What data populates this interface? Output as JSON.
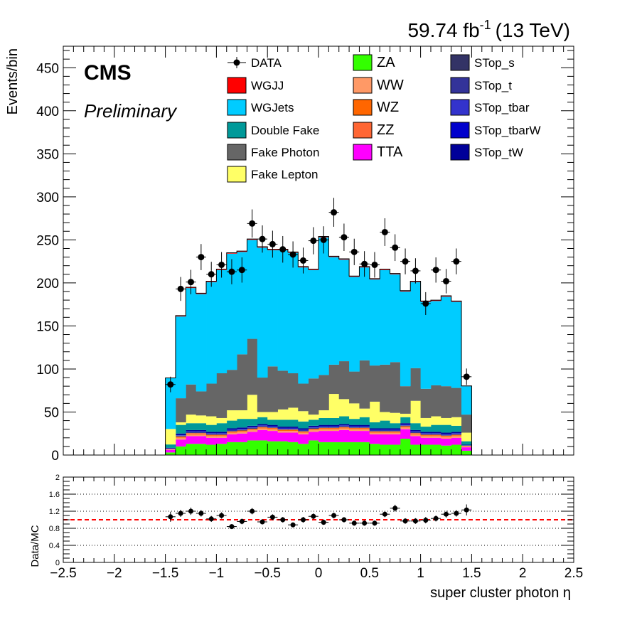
{
  "lumi_text": {
    "value": "59.74 fb",
    "exp": "-1",
    "energy": "(13 TeV)"
  },
  "cms_label": "CMS",
  "prelim_label": "Preliminary",
  "legend": [
    {
      "name": "DATA",
      "color": "#000000",
      "style": "marker"
    },
    {
      "name": "WGJJ",
      "color": "#ff0000"
    },
    {
      "name": "WGJets",
      "color": "#00ccff"
    },
    {
      "name": "Double Fake",
      "color": "#009999"
    },
    {
      "name": "Fake Photon",
      "color": "#666666"
    },
    {
      "name": "Fake Lepton",
      "color": "#ffff66"
    },
    {
      "name": "ZA",
      "color": "#33ff00"
    },
    {
      "name": "WW",
      "color": "#ff9966"
    },
    {
      "name": "WZ",
      "color": "#ff6600"
    },
    {
      "name": "ZZ",
      "color": "#ff6633"
    },
    {
      "name": "TTA",
      "color": "#ff00ff"
    },
    {
      "name": "STop_s",
      "color": "#333366"
    },
    {
      "name": "STop_t",
      "color": "#333399"
    },
    {
      "name": "STop_tbar",
      "color": "#3333cc"
    },
    {
      "name": "STop_tbarW",
      "color": "#0000cc"
    },
    {
      "name": "STop_tW",
      "color": "#000099"
    }
  ],
  "chart_data": [
    {
      "type": "bar",
      "stacked": true,
      "bin_edges": [
        -1.5,
        -1.4,
        -1.3,
        -1.2,
        -1.1,
        -1.0,
        -0.9,
        -0.8,
        -0.7,
        -0.6,
        -0.5,
        -0.4,
        -0.3,
        -0.2,
        -0.1,
        0.0,
        0.1,
        0.2,
        0.3,
        0.4,
        0.5,
        0.6,
        0.7,
        0.8,
        0.9,
        1.0,
        1.1,
        1.2,
        1.3,
        1.4,
        1.5
      ],
      "xlim": [
        -2.5,
        2.5
      ],
      "ylim": [
        0,
        475
      ],
      "ylabel": "Events/bin",
      "xticks": [
        -2.5,
        -2,
        -1.5,
        -1,
        -0.5,
        0,
        0.5,
        1,
        1.5,
        2,
        2.5
      ],
      "xtick_labels": [
        "−2.5",
        "−2",
        "−1.5",
        "−1",
        "−0.5",
        "0",
        "0.5",
        "1",
        "1.5",
        "2",
        "2.5"
      ],
      "yticks": [
        0,
        50,
        100,
        150,
        200,
        250,
        300,
        350,
        400,
        450
      ],
      "ytick_labels": [
        "0",
        "50",
        "100",
        "150",
        "200",
        "250",
        "300",
        "350",
        "400",
        "450"
      ],
      "stack_order": [
        "ZA",
        "TTA",
        "WW",
        "WZ",
        "ZZ",
        "STop_s",
        "STop_t",
        "STop_tbar",
        "STop_tbarW",
        "STop_tW",
        "Double Fake",
        "Fake Lepton",
        "Fake Photon",
        "WGJets",
        "WGJJ"
      ],
      "series": [
        {
          "name": "ZA",
          "values": [
            3,
            10,
            13,
            13,
            12,
            13,
            15,
            15,
            17,
            17,
            16,
            16,
            15,
            13,
            17,
            15,
            15,
            15,
            15,
            15,
            13,
            12,
            12,
            19,
            12,
            12,
            12,
            11,
            12,
            5
          ]
        },
        {
          "name": "TTA",
          "values": [
            3,
            8,
            9,
            9,
            8,
            7,
            9,
            10,
            10,
            12,
            12,
            10,
            11,
            11,
            10,
            13,
            13,
            14,
            13,
            13,
            11,
            12,
            12,
            11,
            10,
            8,
            8,
            8,
            8,
            4
          ]
        },
        {
          "name": "WW",
          "values": [
            0.5,
            2,
            2,
            2,
            2,
            2,
            2,
            2,
            2,
            2,
            2,
            2,
            2,
            2,
            2,
            2,
            2,
            2,
            2,
            2,
            2,
            2,
            2,
            2,
            2,
            2,
            2,
            2,
            2,
            1
          ]
        },
        {
          "name": "WZ",
          "values": [
            0.3,
            1,
            1,
            1,
            1,
            1,
            1,
            1,
            1,
            1,
            1,
            1,
            1,
            1,
            1,
            1,
            1,
            1,
            1,
            1,
            1,
            1,
            1,
            1,
            1,
            1,
            1,
            1,
            1,
            0.5
          ]
        },
        {
          "name": "ZZ",
          "values": [
            0.2,
            0.5,
            0.5,
            0.5,
            0.5,
            0.5,
            0.5,
            0.5,
            0.5,
            0.5,
            0.5,
            0.5,
            0.5,
            0.5,
            0.5,
            0.5,
            0.5,
            0.5,
            0.5,
            0.5,
            0.5,
            0.5,
            0.5,
            0.5,
            0.5,
            0.5,
            0.5,
            0.5,
            0.5,
            0.2
          ]
        },
        {
          "name": "STop_s",
          "values": [
            0.2,
            0.5,
            0.5,
            0.5,
            0.5,
            0.5,
            0.5,
            0.5,
            0.5,
            0.5,
            0.5,
            0.5,
            0.5,
            0.5,
            0.5,
            0.5,
            0.5,
            0.5,
            0.5,
            0.5,
            0.5,
            0.5,
            0.5,
            0.5,
            0.5,
            0.5,
            0.5,
            0.5,
            0.5,
            0.2
          ]
        },
        {
          "name": "STop_t",
          "values": [
            0.2,
            0.5,
            0.5,
            0.5,
            0.5,
            0.5,
            0.5,
            0.5,
            0.5,
            0.5,
            0.5,
            0.5,
            0.5,
            0.5,
            0.5,
            0.5,
            0.5,
            0.5,
            0.5,
            0.5,
            0.5,
            0.5,
            0.5,
            0.5,
            0.5,
            0.5,
            0.5,
            0.5,
            0.5,
            0.2
          ]
        },
        {
          "name": "STop_tbar",
          "values": [
            0.2,
            0.5,
            0.5,
            0.5,
            0.5,
            0.5,
            0.5,
            0.5,
            0.5,
            0.5,
            0.5,
            0.5,
            0.5,
            0.5,
            0.5,
            0.5,
            0.5,
            0.5,
            0.5,
            0.5,
            0.5,
            0.5,
            0.5,
            0.5,
            0.5,
            0.5,
            0.5,
            0.5,
            0.5,
            0.2
          ]
        },
        {
          "name": "STop_tbarW",
          "values": [
            0.2,
            0.5,
            0.5,
            0.5,
            0.5,
            0.5,
            0.5,
            0.5,
            0.5,
            0.5,
            0.5,
            0.5,
            0.5,
            0.5,
            0.5,
            0.5,
            0.5,
            0.5,
            0.5,
            0.5,
            0.5,
            0.5,
            0.5,
            0.5,
            0.5,
            0.5,
            0.5,
            0.5,
            0.5,
            0.2
          ]
        },
        {
          "name": "STop_tW",
          "values": [
            0.5,
            1.5,
            1.5,
            1.5,
            1.5,
            1.5,
            1.5,
            1.5,
            1.5,
            1.5,
            1.5,
            1.5,
            1.5,
            1.5,
            1.5,
            1.5,
            1.5,
            1.5,
            1.5,
            1.5,
            1.5,
            1.5,
            1.5,
            1.5,
            1.5,
            1.5,
            1.5,
            1.5,
            1.5,
            0.5
          ]
        },
        {
          "name": "Double Fake",
          "values": [
            4,
            10,
            8,
            8,
            8,
            10,
            9,
            10,
            8,
            8,
            6,
            8,
            8,
            8,
            7,
            8,
            8,
            9,
            7,
            9,
            7,
            9,
            6,
            7,
            8,
            6,
            8,
            9,
            7,
            4
          ]
        },
        {
          "name": "Fake Lepton",
          "values": [
            18,
            3,
            10,
            9,
            10,
            6,
            12,
            10,
            28,
            6,
            9,
            12,
            14,
            12,
            6,
            9,
            28,
            20,
            18,
            10,
            24,
            10,
            12,
            4,
            26,
            10,
            10,
            8,
            10,
            10
          ]
        },
        {
          "name": "Fake Photon",
          "values": [
            0,
            28,
            35,
            28,
            38,
            52,
            47,
            65,
            65,
            40,
            53,
            45,
            40,
            32,
            42,
            41,
            34,
            44,
            37,
            56,
            42,
            55,
            59,
            32,
            38,
            34,
            36,
            37,
            34,
            21
          ]
        },
        {
          "name": "WGJets",
          "values": [
            59,
            95,
            112,
            113,
            118,
            120,
            135,
            119,
            115,
            151,
            135,
            140,
            140,
            135,
            126,
            160,
            125,
            118,
            110,
            108,
            100,
            110,
            102,
            110,
            100,
            101,
            98,
            104,
            100,
            33
          ]
        },
        {
          "name": "WGJJ",
          "values": [
            0.3,
            1,
            1,
            1,
            1,
            1,
            1,
            1,
            1,
            1,
            1,
            1,
            1,
            1,
            1,
            1,
            1,
            1,
            1,
            1,
            1,
            1,
            1,
            1,
            1,
            1,
            1,
            1,
            1,
            0.3
          ]
        }
      ],
      "data_points": {
        "name": "DATA",
        "x": [
          -1.45,
          -1.35,
          -1.25,
          -1.15,
          -1.05,
          -0.95,
          -0.85,
          -0.75,
          -0.65,
          -0.55,
          -0.45,
          -0.35,
          -0.25,
          -0.15,
          -0.05,
          0.05,
          0.15,
          0.25,
          0.35,
          0.45,
          0.55,
          0.65,
          0.75,
          0.85,
          0.95,
          1.05,
          1.15,
          1.25,
          1.35,
          1.45
        ],
        "y": [
          82,
          193,
          201,
          230,
          210,
          221,
          213,
          215,
          269,
          251,
          245,
          239,
          233,
          226,
          249,
          250,
          282,
          253,
          236,
          222,
          221,
          259,
          241,
          225,
          214,
          176,
          215,
          202,
          225,
          91
        ]
      }
    },
    {
      "type": "scatter",
      "ylabel": "Data/MC",
      "xlabel": "super cluster photon η",
      "ylim": [
        0,
        2
      ],
      "xlim": [
        -2.5,
        2.5
      ],
      "yticks": [
        0,
        0.4,
        0.8,
        1.2,
        1.6,
        2
      ],
      "ytick_labels": [
        "0",
        "0.4",
        "0.8",
        "1.2",
        "1.6",
        "2"
      ],
      "reference_line": 1.0,
      "x": [
        -1.45,
        -1.35,
        -1.25,
        -1.15,
        -1.05,
        -0.95,
        -0.85,
        -0.75,
        -0.65,
        -0.55,
        -0.45,
        -0.35,
        -0.25,
        -0.15,
        -0.05,
        0.05,
        0.15,
        0.25,
        0.35,
        0.45,
        0.55,
        0.65,
        0.75,
        0.85,
        0.95,
        1.05,
        1.15,
        1.25,
        1.35,
        1.45
      ],
      "y": [
        1.07,
        1.15,
        1.2,
        1.15,
        1.02,
        1.1,
        0.84,
        0.96,
        1.2,
        0.95,
        1.06,
        1.0,
        0.88,
        1.0,
        1.08,
        0.94,
        1.1,
        1.0,
        0.92,
        0.92,
        0.92,
        1.13,
        1.27,
        0.97,
        0.97,
        0.99,
        1.03,
        1.13,
        1.15,
        1.23
      ]
    }
  ]
}
